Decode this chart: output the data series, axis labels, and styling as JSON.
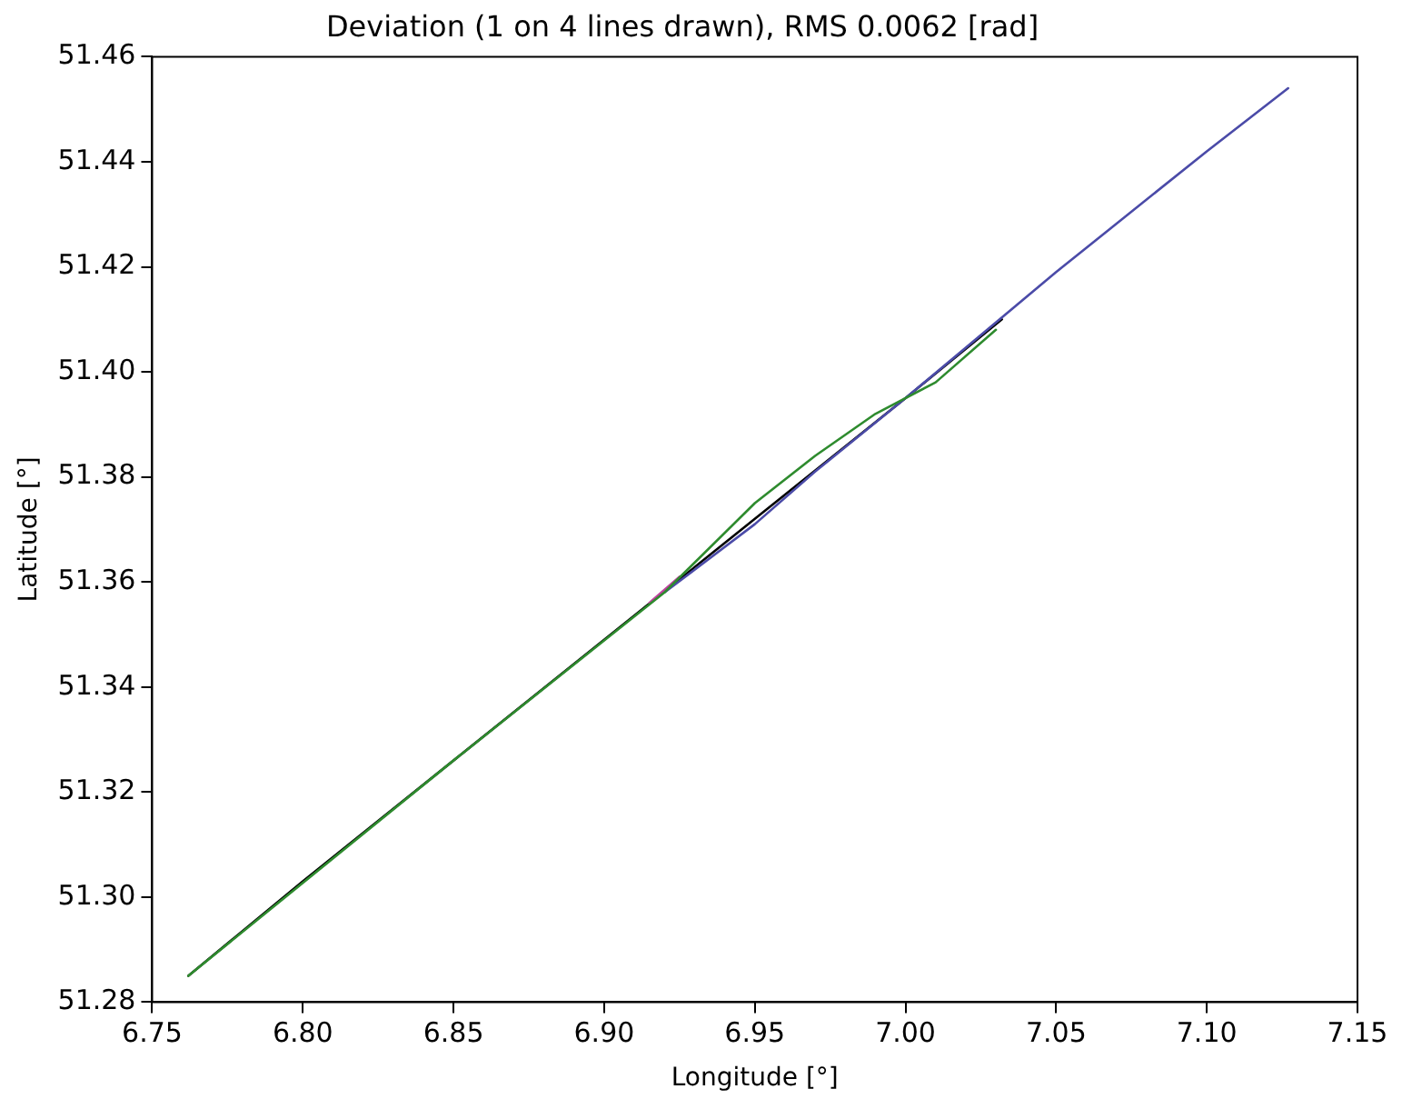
{
  "chart_data": {
    "type": "line",
    "title": "Deviation (1 on 4 lines drawn), RMS 0.0062 [rad]",
    "xlabel": "Longitude [°]",
    "ylabel": "Latitude [°]",
    "xlim": [
      6.75,
      7.15
    ],
    "ylim": [
      51.28,
      51.46
    ],
    "xticks": [
      {
        "value": 6.75,
        "label": "6.75"
      },
      {
        "value": 6.8,
        "label": "6.80"
      },
      {
        "value": 6.85,
        "label": "6.85"
      },
      {
        "value": 6.9,
        "label": "6.90"
      },
      {
        "value": 6.95,
        "label": "6.95"
      },
      {
        "value": 7.0,
        "label": "7.00"
      },
      {
        "value": 7.05,
        "label": "7.05"
      },
      {
        "value": 7.1,
        "label": "7.10"
      },
      {
        "value": 7.15,
        "label": "7.15"
      }
    ],
    "yticks": [
      {
        "value": 51.28,
        "label": "51.28"
      },
      {
        "value": 51.3,
        "label": "51.30"
      },
      {
        "value": 51.32,
        "label": "51.32"
      },
      {
        "value": 51.34,
        "label": "51.34"
      },
      {
        "value": 51.36,
        "label": "51.36"
      },
      {
        "value": 51.38,
        "label": "51.38"
      },
      {
        "value": 51.4,
        "label": "51.40"
      },
      {
        "value": 51.42,
        "label": "51.42"
      },
      {
        "value": 51.44,
        "label": "51.44"
      },
      {
        "value": 51.46,
        "label": "51.46"
      }
    ],
    "grid": false,
    "legend": false,
    "marker": "none",
    "line_style": "solid",
    "series": [
      {
        "color": "#2e8b2e",
        "x": [
          6.762,
          6.85,
          6.92,
          6.95,
          6.97,
          6.99,
          7.01,
          7.03
        ],
        "values": [
          51.285,
          51.326,
          51.358,
          51.375,
          51.384,
          51.392,
          51.398,
          51.408
        ]
      },
      {
        "color": "#c040a0",
        "x": [
          6.915,
          6.925
        ],
        "values": [
          51.356,
          51.361
        ]
      },
      {
        "color": "#4b4ba8",
        "x": [
          6.92,
          6.95,
          6.97,
          7.0,
          7.05,
          7.1,
          7.127
        ],
        "values": [
          51.358,
          51.371,
          51.381,
          51.395,
          51.419,
          51.442,
          51.454
        ]
      },
      {
        "color": "#000000",
        "x": [
          6.762,
          6.8,
          6.85,
          6.9,
          6.95,
          7.0,
          7.032
        ],
        "values": [
          51.285,
          51.303,
          51.326,
          51.349,
          51.372,
          51.395,
          51.41
        ]
      }
    ]
  }
}
